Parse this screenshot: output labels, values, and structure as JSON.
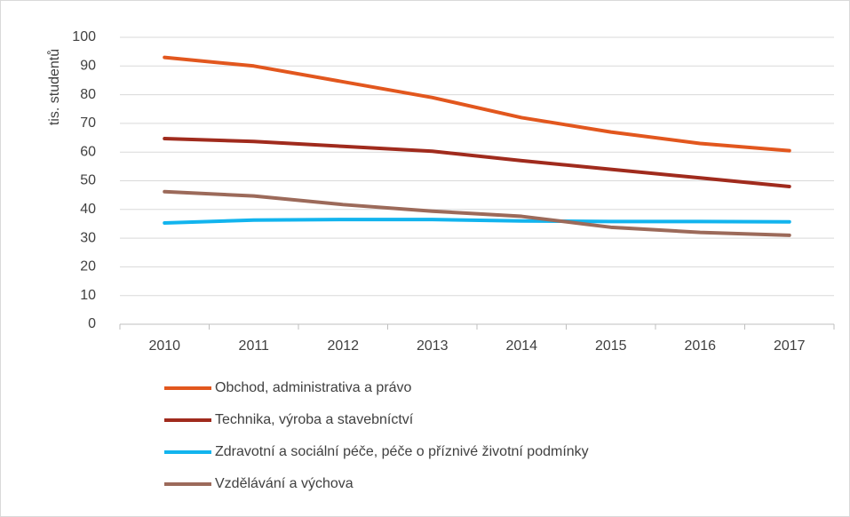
{
  "chart_data": {
    "type": "line",
    "y_label": "tis. studentů",
    "categories": [
      "2010",
      "2011",
      "2012",
      "2013",
      "2014",
      "2015",
      "2016",
      "2017"
    ],
    "series": [
      {
        "name": "Obchod, administrativa a právo",
        "color": "#e2571e",
        "values": [
          93,
          90,
          84.5,
          79,
          72,
          67,
          63,
          60.5
        ]
      },
      {
        "name": "Technika, výroba a stavebníctví",
        "color": "#a02b1d",
        "values": [
          64.7,
          63.7,
          62,
          60.3,
          57,
          54,
          51,
          48
        ]
      },
      {
        "name": "Zdravotní a sociální péče, péče o příznivé životní podmínky",
        "color": "#12b4ee",
        "values": [
          35.3,
          36.3,
          36.5,
          36.5,
          36,
          35.8,
          35.8,
          35.7
        ]
      },
      {
        "name": "Vzdělávání a výchova",
        "color": "#9c6a5a",
        "values": [
          46.2,
          44.7,
          41.7,
          39.4,
          37.6,
          33.8,
          32,
          31
        ]
      }
    ],
    "ylim": [
      0,
      100
    ],
    "yticks": [
      0,
      10,
      20,
      30,
      40,
      50,
      60,
      70,
      80,
      90,
      100
    ],
    "grid": true
  }
}
